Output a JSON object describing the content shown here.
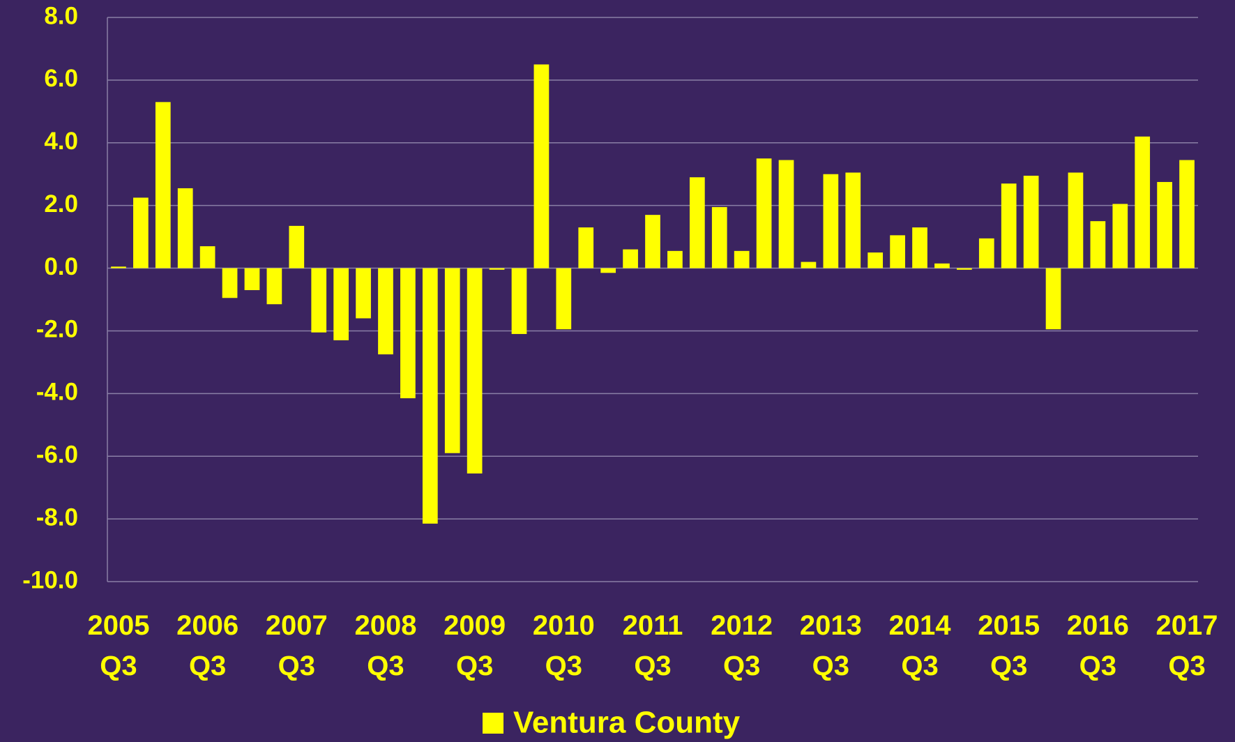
{
  "chart_data": {
    "type": "bar",
    "categories": [
      "2005\nQ3",
      null,
      null,
      null,
      "2006\nQ3",
      null,
      null,
      null,
      "2007\nQ3",
      null,
      null,
      null,
      "2008\nQ3",
      null,
      null,
      null,
      "2009\nQ3",
      null,
      null,
      null,
      "2010\nQ3",
      null,
      null,
      null,
      "2011\nQ3",
      null,
      null,
      null,
      "2012\nQ3",
      null,
      null,
      null,
      "2013\nQ3",
      null,
      null,
      null,
      "2014\nQ3",
      null,
      null,
      null,
      "2015\nQ3",
      null,
      null,
      null,
      "2016\nQ3",
      null,
      null,
      null,
      "2017\nQ3"
    ],
    "series": [
      {
        "name": "Ventura County",
        "color": "#ffff00",
        "values": [
          0.05,
          2.25,
          5.3,
          2.55,
          0.7,
          -0.95,
          -0.7,
          -1.15,
          1.35,
          -2.05,
          -2.3,
          -1.6,
          -2.75,
          -4.15,
          -8.15,
          -5.9,
          -6.55,
          -0.05,
          -2.1,
          6.5,
          -1.95,
          1.3,
          -0.15,
          0.6,
          1.7,
          0.55,
          2.9,
          1.95,
          0.55,
          3.5,
          3.45,
          0.2,
          3.0,
          3.05,
          0.5,
          1.05,
          1.3,
          0.15,
          -0.05,
          0.95,
          2.7,
          2.95,
          -1.95,
          3.05,
          1.5,
          2.05,
          4.2,
          2.75,
          3.45
        ]
      }
    ],
    "ylim": [
      -10,
      8
    ],
    "yticks": [
      {
        "value": -10,
        "label": "-10.0"
      },
      {
        "value": -8,
        "label": "-8.0"
      },
      {
        "value": -6,
        "label": "-6.0"
      },
      {
        "value": -4,
        "label": "-4.0"
      },
      {
        "value": -2,
        "label": "-2.0"
      },
      {
        "value": 0,
        "label": "0.0"
      },
      {
        "value": 2,
        "label": "2.0"
      },
      {
        "value": 4,
        "label": "4.0"
      },
      {
        "value": 6,
        "label": "6.0"
      },
      {
        "value": 8,
        "label": "8.0"
      }
    ],
    "grid": true,
    "legend": "bottom"
  }
}
